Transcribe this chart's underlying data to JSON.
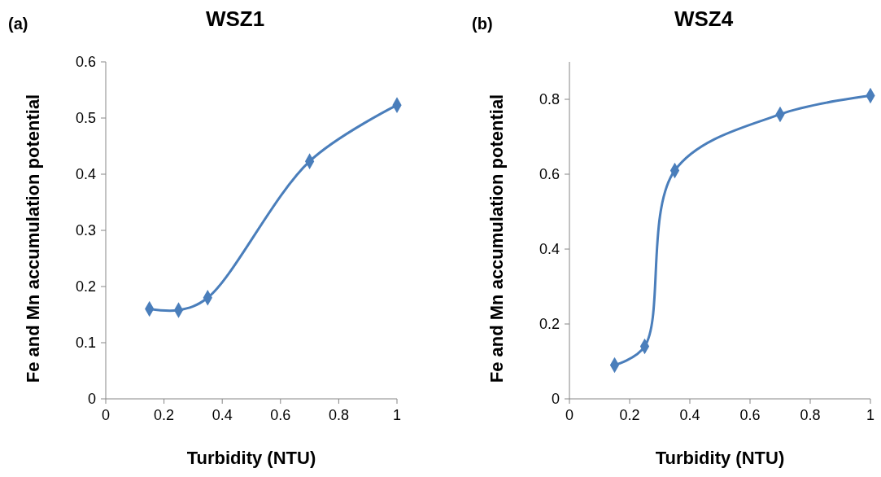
{
  "chart_data": [
    {
      "type": "line",
      "title": "WSZ1",
      "annotations": [
        "(a)"
      ],
      "xlabel": "Turbidity (NTU)",
      "ylabel": "Fe and Mn accumulation potential",
      "x": [
        0.15,
        0.25,
        0.35,
        0.7,
        1
      ],
      "series": [
        {
          "color": "#4a7ebb",
          "values": [
            0.16,
            0.158,
            0.18,
            0.423,
            0.523
          ]
        }
      ],
      "xlim": [
        0,
        1
      ],
      "xticks": [
        0,
        0.2,
        0.4,
        0.6,
        0.8,
        1
      ],
      "ylim": [
        0,
        0.6
      ],
      "yticks": [
        0,
        0.1,
        0.2,
        0.3,
        0.4,
        0.5,
        0.6
      ],
      "marker": "diamond",
      "grid": false
    },
    {
      "type": "line",
      "title": "WSZ4",
      "annotations": [
        "(b)"
      ],
      "xlabel": "Turbidity (NTU)",
      "ylabel": "Fe and Mn accumulation potential",
      "x": [
        0.15,
        0.25,
        0.35,
        0.7,
        1
      ],
      "series": [
        {
          "color": "#4a7ebb",
          "values": [
            0.09,
            0.14,
            0.61,
            0.76,
            0.81
          ]
        }
      ],
      "xlim": [
        0,
        1
      ],
      "xticks": [
        0,
        0.2,
        0.4,
        0.6,
        0.8,
        1
      ],
      "ylim": [
        0,
        0.9
      ],
      "yticks": [
        0,
        0.2,
        0.4,
        0.6,
        0.8
      ],
      "marker": "diamond",
      "grid": false
    }
  ]
}
